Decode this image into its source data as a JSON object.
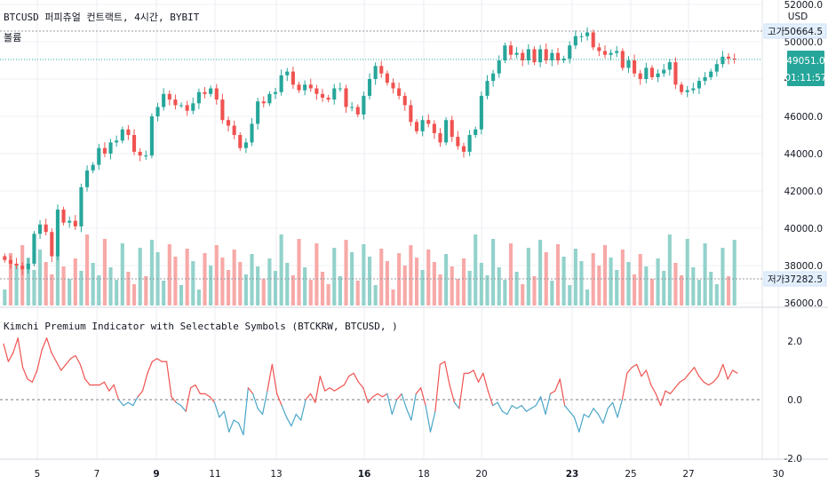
{
  "header": {
    "symbol_title": "BTCUSD 퍼피츄얼 컨트랙트, 4시간, BYBIT",
    "volume_label": "볼륨",
    "indicator_title": "Kimchi Premium Indicator with Selectable Symbols (BTCKRW, BTCUSD, )",
    "price_unit": "USD"
  },
  "colors": {
    "up": "#26a69a",
    "down": "#ef5350",
    "vol_up": "#92d2cb",
    "vol_down": "#f7a9a7",
    "kp_pos": "#ef5350",
    "kp_neg": "#4aa6c8",
    "grid": "#e0e3eb",
    "text": "#131722"
  },
  "markers": {
    "high": {
      "label": "고가",
      "value": "50664.5"
    },
    "low": {
      "label": "저가",
      "value": "37282.5"
    },
    "last": {
      "price": "49051.0",
      "countdown": "01:11:57"
    }
  },
  "chart_data": [
    {
      "type": "candlestick",
      "title": "BTCUSD 퍼피츄얼 컨트랙트, 4시간, BYBIT",
      "y_ticks": [
        "36000.0",
        "38000.0",
        "40000.0",
        "42000.0",
        "44000.0",
        "46000.0",
        "48000.0",
        "50000.0",
        "52000.0"
      ],
      "ylim": [
        36000,
        52000
      ],
      "x_ticks": [
        "5",
        "7",
        "9",
        "11",
        "13",
        "16",
        "18",
        "20",
        "23",
        "25",
        "27",
        "30"
      ],
      "bold_x_ticks": [
        "9",
        "16",
        "23"
      ],
      "close": [
        38300,
        38100,
        38000,
        37800,
        38100,
        39700,
        40200,
        39800,
        38500,
        41000,
        40300,
        40400,
        40100,
        42200,
        43100,
        43400,
        44300,
        44000,
        44600,
        44700,
        45300,
        45000,
        44100,
        43900,
        43900,
        46000,
        46500,
        47200,
        46900,
        46600,
        46600,
        46300,
        46700,
        47300,
        47200,
        47500,
        46900,
        45800,
        45500,
        45000,
        44300,
        44600,
        45600,
        46800,
        46700,
        47200,
        47300,
        48200,
        48400,
        47700,
        47400,
        47700,
        47500,
        47200,
        47000,
        46900,
        47500,
        47500,
        46500,
        46500,
        46100,
        47100,
        48000,
        48700,
        48300,
        47800,
        47500,
        47100,
        46600,
        45700,
        45200,
        45800,
        45600,
        45100,
        44600,
        45800,
        44900,
        44400,
        44100,
        45000,
        45300,
        47100,
        47900,
        48300,
        49000,
        49800,
        49300,
        49400,
        49000,
        49600,
        48900,
        49600,
        49000,
        49400,
        49000,
        49100,
        49800,
        50300,
        50300,
        50500,
        49700,
        49500,
        49300,
        49400,
        49500,
        48600,
        49000,
        48300,
        48000,
        48600,
        48100,
        48300,
        48500,
        48900,
        47700,
        47300,
        47400,
        47500,
        47900,
        48100,
        48400,
        48800,
        49200,
        49100,
        49051
      ],
      "volume_dir": [
        "u",
        "d",
        "u",
        "d",
        "u",
        "u",
        "u",
        "d",
        "d",
        "u",
        "d",
        "u",
        "d",
        "u",
        "d",
        "u",
        "u",
        "d",
        "u",
        "u",
        "u",
        "d",
        "d",
        "u",
        "d",
        "u",
        "u",
        "u",
        "d",
        "d",
        "u",
        "d",
        "u",
        "u",
        "d",
        "u",
        "d",
        "d",
        "d",
        "d",
        "d",
        "u",
        "u",
        "u",
        "d",
        "u",
        "u",
        "u",
        "u",
        "d",
        "d",
        "u",
        "d",
        "d",
        "d",
        "d",
        "u",
        "u",
        "d",
        "u",
        "d",
        "u",
        "u",
        "u",
        "d",
        "d",
        "d",
        "d",
        "d",
        "d",
        "d",
        "u",
        "d",
        "d",
        "d",
        "u",
        "d",
        "d",
        "d",
        "u",
        "u",
        "u",
        "u",
        "u",
        "u",
        "u",
        "d",
        "u",
        "d",
        "u",
        "d",
        "u",
        "d",
        "u",
        "d",
        "u",
        "u",
        "u",
        "u",
        "u",
        "d",
        "d",
        "d",
        "u",
        "u",
        "d",
        "u",
        "d",
        "d",
        "u",
        "d",
        "u",
        "u",
        "u",
        "d",
        "d",
        "u",
        "u",
        "u",
        "u",
        "u",
        "u",
        "u",
        "d",
        "u"
      ]
    },
    {
      "type": "line",
      "title": "Kimchi Premium Indicator with Selectable Symbols (BTCKRW, BTCUSD, )",
      "y_ticks": [
        "2.0",
        "0.0",
        "-2.0"
      ],
      "ylim": [
        -2.0,
        2.2
      ],
      "zero_line": 0.0,
      "values": [
        1.9,
        1.3,
        1.6,
        2.1,
        1.1,
        0.7,
        0.6,
        1.0,
        1.7,
        2.1,
        1.6,
        1.3,
        1.0,
        1.2,
        1.4,
        1.5,
        1.2,
        0.7,
        0.5,
        0.5,
        0.5,
        0.6,
        0.3,
        0.5,
        0.0,
        -0.2,
        -0.1,
        -0.2,
        0.1,
        0.3,
        0.9,
        1.3,
        1.4,
        1.3,
        1.3,
        0.1,
        -0.1,
        -0.2,
        -0.4,
        0.4,
        0.5,
        0.2,
        0.2,
        0.1,
        -0.1,
        -0.6,
        -0.4,
        -1.1,
        -0.7,
        -0.8,
        -1.2,
        0.4,
        0.2,
        -0.3,
        -0.5,
        0.3,
        1.2,
        0.2,
        -0.2,
        -0.6,
        -0.9,
        -0.5,
        -0.7,
        0.0,
        0.2,
        -0.1,
        0.8,
        0.3,
        0.4,
        0.3,
        0.4,
        0.5,
        0.8,
        0.9,
        0.6,
        0.4,
        -0.1,
        0.1,
        0.2,
        0.1,
        0.2,
        -0.5,
        0.0,
        0.2,
        -0.3,
        -0.7,
        0.2,
        0.4,
        -0.2,
        -1.1,
        -0.4,
        1.2,
        1.3,
        0.5,
        -0.1,
        -0.3,
        0.9,
        0.9,
        1.0,
        0.6,
        0.9,
        0.3,
        -0.2,
        -0.1,
        -0.4,
        -0.5,
        -0.2,
        -0.3,
        -0.2,
        -0.4,
        -0.3,
        -0.2,
        0.1,
        -0.5,
        0.2,
        0.3,
        0.7,
        -0.2,
        -0.4,
        -0.6,
        -1.1,
        -0.5,
        -0.6,
        -0.3,
        -0.5,
        -0.8,
        -0.3,
        -0.1,
        -0.6,
        0.0,
        0.9,
        1.1,
        1.2,
        0.8,
        1.0,
        0.5,
        0.2,
        -0.2,
        0.3,
        0.2,
        0.4,
        0.6,
        0.7,
        0.9,
        1.1,
        0.8,
        0.6,
        0.5,
        0.6,
        0.8,
        1.2,
        0.7,
        1.0,
        0.9
      ]
    }
  ]
}
